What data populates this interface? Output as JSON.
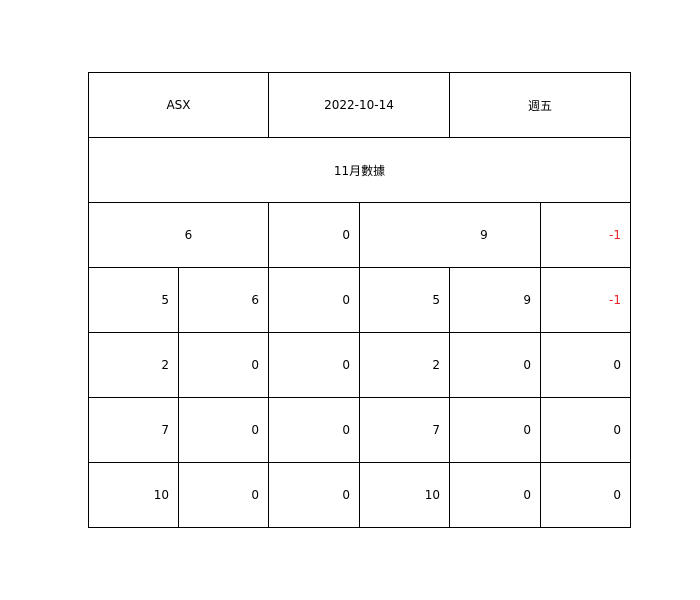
{
  "header": {
    "ticker": "ASX",
    "date": "2022-10-14",
    "weekday": "週五"
  },
  "section_title": "11月數據",
  "summary_row": [
    "6",
    "0",
    "9",
    "-1"
  ],
  "rows": [
    [
      "5",
      "6",
      "0",
      "5",
      "9",
      "-1"
    ],
    [
      "2",
      "0",
      "0",
      "2",
      "0",
      "0"
    ],
    [
      "7",
      "0",
      "0",
      "7",
      "0",
      "0"
    ],
    [
      "10",
      "0",
      "0",
      "10",
      "0",
      "0"
    ]
  ],
  "colors": {
    "negative": "#e8272b",
    "border": "#000000"
  }
}
